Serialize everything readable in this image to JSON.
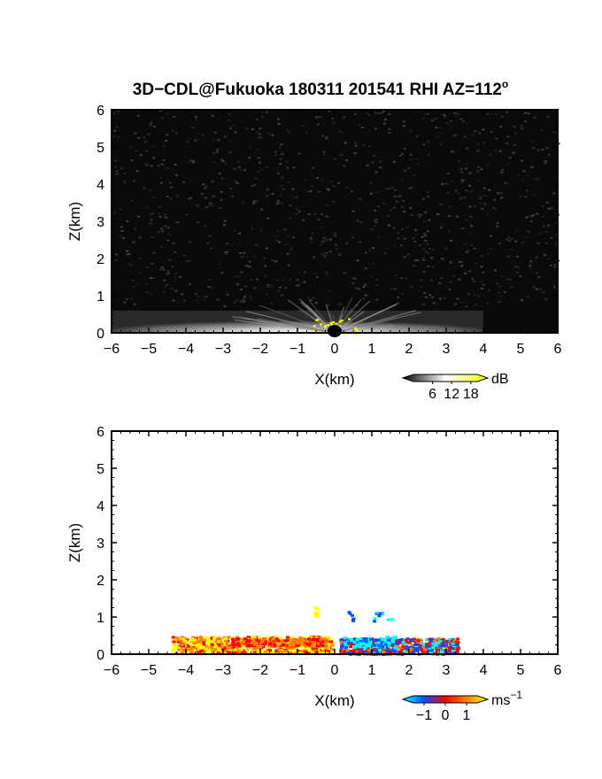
{
  "title": "3D−CDL@Fukuoka 180311 201541 RHI AZ=112",
  "title_superscript": "o",
  "chart_data": [
    {
      "type": "heatmap",
      "name": "reflectivity-panel",
      "xlabel": "X(km)",
      "ylabel": "Z(km)",
      "xlim": [
        -6,
        6
      ],
      "ylim": [
        0,
        6
      ],
      "x_ticks": [
        -6,
        -5,
        -4,
        -3,
        -2,
        -1,
        0,
        1,
        2,
        3,
        4,
        5,
        6
      ],
      "y_ticks": [
        0,
        1,
        2,
        3,
        4,
        5,
        6
      ],
      "x_tick_labels": [
        "−6",
        "−5",
        "−4",
        "−3",
        "−2",
        "−1",
        "0",
        "1",
        "2",
        "3",
        "4",
        "5",
        "6"
      ],
      "y_tick_labels": [
        "0",
        "1",
        "2",
        "3",
        "4",
        "5",
        "6"
      ],
      "background_color": "#0a0a0a",
      "colorbar": {
        "unit": "dB",
        "tick_values": [
          6,
          12,
          18
        ],
        "tick_labels": [
          "6",
          "12",
          "18"
        ],
        "range": [
          0,
          20
        ],
        "colors": [
          "#000000",
          "#ffffff",
          "#ffff00"
        ]
      }
    },
    {
      "type": "heatmap",
      "name": "doppler-velocity-panel",
      "xlabel": "X(km)",
      "ylabel": "Z(km)",
      "xlim": [
        -6,
        6
      ],
      "ylim": [
        0,
        6
      ],
      "x_ticks": [
        -6,
        -5,
        -4,
        -3,
        -2,
        -1,
        0,
        1,
        2,
        3,
        4,
        5,
        6
      ],
      "y_ticks": [
        0,
        1,
        2,
        3,
        4,
        5,
        6
      ],
      "x_tick_labels": [
        "−6",
        "−5",
        "−4",
        "−3",
        "−2",
        "−1",
        "0",
        "1",
        "2",
        "3",
        "4",
        "5",
        "6"
      ],
      "y_tick_labels": [
        "0",
        "1",
        "2",
        "3",
        "4",
        "5",
        "6"
      ],
      "background_color": "#ffffff",
      "colorbar": {
        "unit": "ms",
        "unit_superscript": "−1",
        "tick_values": [
          -1,
          0,
          1
        ],
        "tick_labels": [
          "−1",
          "0",
          "1"
        ],
        "range": [
          -1.5,
          1.5
        ],
        "colors": [
          "#00ffff",
          "#0050ff",
          "#ff0000",
          "#ff8000",
          "#ffff00"
        ]
      }
    }
  ]
}
